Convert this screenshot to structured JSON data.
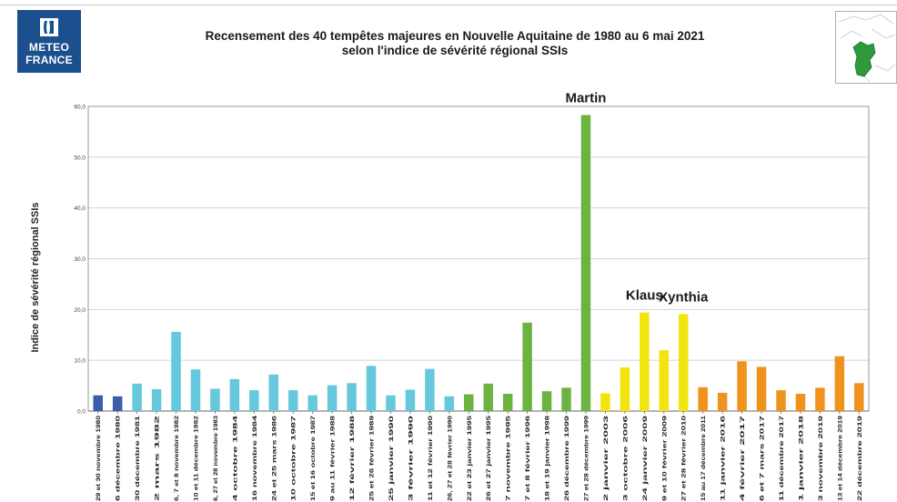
{
  "header": {
    "logo_line1": "METEO",
    "logo_line2": "FRANCE",
    "title_line1": "Recensement des 40 tempêtes majeures en Nouvelle Aquitaine de 1980 au 6 mai 2021",
    "title_line2": "selon l'indice de sévérité régional SSIs"
  },
  "chart_data": {
    "type": "bar",
    "title": "Recensement des 40 tempêtes majeures en Nouvelle Aquitaine de 1980 au 6 mai 2021 selon l'indice de sévérité régional SSIs",
    "xlabel": "",
    "ylabel": "Indice de sévérité régional  SSIs",
    "ylim": [
      0,
      60
    ],
    "yticks": [
      "0,0",
      "10,0",
      "20,0",
      "30,0",
      "40,0",
      "50,0",
      "60,0"
    ],
    "grid": true,
    "categories": [
      "29 et 30 novembre 1980",
      "6 décembre 1980",
      "30 décembre 1981",
      "2 mars 1982",
      "6, 7 et 8 novembre 1982",
      "10 et 11 décembre 1982",
      "6, 27 et 28 novembre 1983",
      "4 octobre 1984",
      "16 novembre 1984",
      "24 et 25 mars 1986",
      "10 octobre 1987",
      "15 et 16 octobre 1987",
      "9 au 11 février 1988",
      "12 février 1988",
      "25 et 26 février 1989",
      "25 janvier 1990",
      "3 février 1990",
      "11 et 12 février 1990",
      "26, 27 et 28 février 1990",
      "22 et 23 janvier 1995",
      "26 et 27 janvier 1995",
      "7 novembre 1995",
      "7 et 8 février 1996",
      "18 et 19 janvier 1998",
      "26 décembre 1999",
      "27 et 28 décembre 1999",
      "2 janvier 2003",
      "3 octobre 2006",
      "24 janvier 2009",
      "9 et 10 février 2009",
      "27 et 28 février 2010",
      "15 au 17 décembre 2011",
      "11 janvier 2016",
      "4 février 2017",
      "6 et 7 mars 2017",
      "11 décembre 2017",
      "1 janvier 2018",
      "3 novembre 2019",
      "13 et 14 décembre 2019",
      "22 décembre 2019"
    ],
    "values": [
      3.1,
      2.9,
      5.4,
      4.3,
      15.6,
      8.2,
      4.4,
      6.3,
      4.1,
      7.2,
      4.1,
      3.1,
      5.1,
      5.5,
      8.9,
      3.1,
      4.2,
      8.3,
      2.9,
      3.3,
      5.4,
      3.4,
      17.4,
      3.9,
      4.6,
      58.3,
      3.5,
      8.6,
      19.4,
      12.0,
      19.1,
      4.7,
      3.6,
      9.8,
      8.7,
      4.1,
      3.4,
      4.6,
      10.8,
      5.5
    ],
    "colors": [
      "#3a5dab",
      "#3a5dab",
      "#66c8dc",
      "#66c8dc",
      "#66c8dc",
      "#66c8dc",
      "#66c8dc",
      "#66c8dc",
      "#66c8dc",
      "#66c8dc",
      "#66c8dc",
      "#66c8dc",
      "#66c8dc",
      "#66c8dc",
      "#66c8dc",
      "#66c8dc",
      "#66c8dc",
      "#66c8dc",
      "#66c8dc",
      "#6db33f",
      "#6db33f",
      "#6db33f",
      "#6db33f",
      "#6db33f",
      "#6db33f",
      "#6db33f",
      "#f2e40c",
      "#f2e40c",
      "#f2e40c",
      "#f2e40c",
      "#f2e40c",
      "#f0921e",
      "#f0921e",
      "#f0921e",
      "#f0921e",
      "#f0921e",
      "#f0921e",
      "#f0921e",
      "#f0921e",
      "#f0921e"
    ],
    "annotations": [
      {
        "text": "Martin",
        "category_index": 25
      },
      {
        "text": "Klaus",
        "category_index": 28
      },
      {
        "text": "Xynthia",
        "category_index": 30
      }
    ]
  }
}
